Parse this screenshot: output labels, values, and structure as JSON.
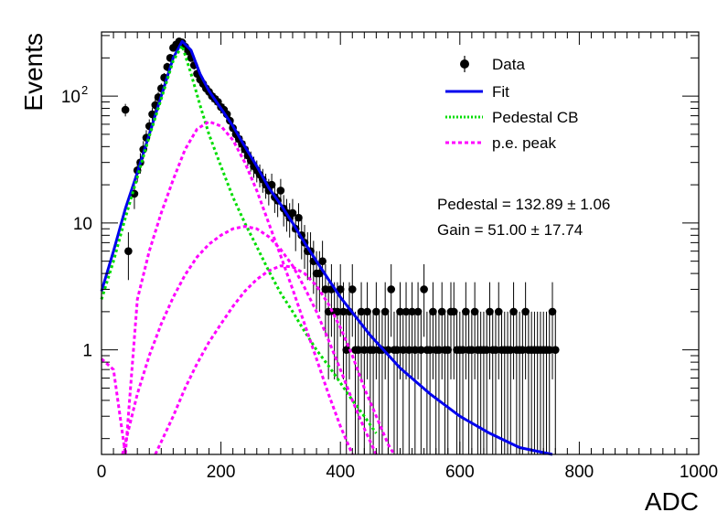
{
  "chart_data": {
    "type": "histogram_fit",
    "xlabel": "ADC",
    "ylabel": "Events",
    "xlim": [
      0,
      1000
    ],
    "ylim": [
      0.15,
      320
    ],
    "log_y": true,
    "grid": false,
    "x_ticks": [
      {
        "value": 0,
        "label": "0"
      },
      {
        "value": 200,
        "label": "200"
      },
      {
        "value": 400,
        "label": "400"
      },
      {
        "value": 600,
        "label": "600"
      },
      {
        "value": 800,
        "label": "800"
      },
      {
        "value": 1000,
        "label": "1000"
      }
    ],
    "y_ticks": [
      {
        "value": 1,
        "label": "1"
      },
      {
        "value": 10,
        "label": "10"
      },
      {
        "value": 100,
        "label": "10",
        "exponent": "2"
      }
    ],
    "legend": {
      "position": "top-right",
      "entries": [
        {
          "label": "Data",
          "style": "marker",
          "color": "#000000"
        },
        {
          "label": "Fit",
          "style": "solid",
          "color": "#0000ee"
        },
        {
          "label": "Pedestal CB",
          "style": "dotted",
          "color": "#00dd00"
        },
        {
          "label": "p.e. peak",
          "style": "dashed",
          "color": "#ff00ff"
        }
      ]
    },
    "annotations": [
      {
        "text": "Pedestal = 132.89 ± 1.06"
      },
      {
        "text": "Gain = 51.00 ± 17.74"
      }
    ],
    "fit_parameters": {
      "pedestal": 132.89,
      "gain": 51.0
    },
    "data_points": [
      [
        40,
        78
      ],
      [
        45,
        6
      ],
      [
        55,
        17
      ],
      [
        60,
        26
      ],
      [
        65,
        30
      ],
      [
        70,
        38
      ],
      [
        75,
        47
      ],
      [
        80,
        58
      ],
      [
        85,
        72
      ],
      [
        90,
        85
      ],
      [
        95,
        98
      ],
      [
        100,
        115
      ],
      [
        105,
        140
      ],
      [
        110,
        170
      ],
      [
        115,
        200
      ],
      [
        120,
        240
      ],
      [
        125,
        255
      ],
      [
        130,
        270
      ],
      [
        135,
        265
      ],
      [
        140,
        245
      ],
      [
        145,
        225
      ],
      [
        150,
        200
      ],
      [
        155,
        175
      ],
      [
        160,
        150
      ],
      [
        165,
        135
      ],
      [
        170,
        125
      ],
      [
        175,
        115
      ],
      [
        180,
        108
      ],
      [
        185,
        100
      ],
      [
        190,
        95
      ],
      [
        195,
        90
      ],
      [
        200,
        82
      ],
      [
        205,
        78
      ],
      [
        210,
        72
      ],
      [
        215,
        64
      ],
      [
        220,
        56
      ],
      [
        225,
        50
      ],
      [
        230,
        46
      ],
      [
        235,
        42
      ],
      [
        240,
        38
      ],
      [
        245,
        34
      ],
      [
        250,
        31
      ],
      [
        255,
        28
      ],
      [
        260,
        26
      ],
      [
        265,
        24
      ],
      [
        270,
        22
      ],
      [
        275,
        20
      ],
      [
        280,
        18
      ],
      [
        285,
        20
      ],
      [
        290,
        16
      ],
      [
        295,
        15
      ],
      [
        300,
        18
      ],
      [
        305,
        13
      ],
      [
        310,
        12
      ],
      [
        315,
        11
      ],
      [
        320,
        12
      ],
      [
        325,
        9
      ],
      [
        330,
        11
      ],
      [
        335,
        8
      ],
      [
        340,
        7
      ],
      [
        345,
        6
      ],
      [
        350,
        6
      ],
      [
        355,
        5
      ],
      [
        360,
        4
      ],
      [
        365,
        4
      ],
      [
        370,
        5
      ],
      [
        375,
        3
      ],
      [
        380,
        2
      ],
      [
        385,
        3
      ],
      [
        390,
        2
      ],
      [
        395,
        2
      ],
      [
        400,
        3
      ],
      [
        405,
        2
      ],
      [
        410,
        1
      ],
      [
        415,
        2
      ],
      [
        420,
        3
      ],
      [
        425,
        1
      ],
      [
        430,
        1
      ],
      [
        435,
        2
      ],
      [
        440,
        1
      ],
      [
        445,
        2
      ],
      [
        450,
        1
      ],
      [
        455,
        1
      ],
      [
        460,
        2
      ],
      [
        465,
        1
      ],
      [
        470,
        1
      ],
      [
        475,
        2
      ],
      [
        480,
        1
      ],
      [
        485,
        3
      ],
      [
        490,
        1
      ],
      [
        495,
        1
      ],
      [
        500,
        2
      ],
      [
        505,
        1
      ],
      [
        510,
        2
      ],
      [
        515,
        1
      ],
      [
        520,
        2
      ],
      [
        525,
        1
      ],
      [
        530,
        2
      ],
      [
        535,
        1
      ],
      [
        540,
        3
      ],
      [
        545,
        1
      ],
      [
        550,
        1
      ],
      [
        555,
        2
      ],
      [
        560,
        1
      ],
      [
        565,
        1
      ],
      [
        570,
        2
      ],
      [
        575,
        1
      ],
      [
        580,
        1
      ],
      [
        585,
        2
      ],
      [
        590,
        2
      ],
      [
        595,
        1
      ],
      [
        600,
        1
      ],
      [
        605,
        1
      ],
      [
        610,
        2
      ],
      [
        615,
        1
      ],
      [
        620,
        1
      ],
      [
        625,
        2
      ],
      [
        630,
        1
      ],
      [
        635,
        1
      ],
      [
        640,
        1
      ],
      [
        645,
        1
      ],
      [
        650,
        2
      ],
      [
        655,
        1
      ],
      [
        660,
        1
      ],
      [
        665,
        2
      ],
      [
        670,
        1
      ],
      [
        675,
        1
      ],
      [
        680,
        1
      ],
      [
        685,
        1
      ],
      [
        690,
        2
      ],
      [
        695,
        1
      ],
      [
        700,
        1
      ],
      [
        705,
        1
      ],
      [
        710,
        2
      ],
      [
        715,
        1
      ],
      [
        720,
        1
      ],
      [
        725,
        1
      ],
      [
        730,
        1
      ],
      [
        735,
        1
      ],
      [
        740,
        1
      ],
      [
        745,
        1
      ],
      [
        750,
        1
      ],
      [
        755,
        2
      ],
      [
        760,
        1
      ]
    ],
    "series": [
      {
        "name": "Fit",
        "color": "#0000ee",
        "points": [
          [
            0,
            2.9
          ],
          [
            20,
            6
          ],
          [
            40,
            13
          ],
          [
            60,
            25
          ],
          [
            80,
            50
          ],
          [
            100,
            100
          ],
          [
            120,
            200
          ],
          [
            135,
            270
          ],
          [
            150,
            230
          ],
          [
            165,
            150
          ],
          [
            180,
            110
          ],
          [
            200,
            80
          ],
          [
            220,
            58
          ],
          [
            240,
            40
          ],
          [
            260,
            28
          ],
          [
            280,
            19
          ],
          [
            300,
            14
          ],
          [
            320,
            10
          ],
          [
            340,
            7
          ],
          [
            360,
            5
          ],
          [
            380,
            3.6
          ],
          [
            400,
            2.6
          ],
          [
            450,
            1.3
          ],
          [
            500,
            0.72
          ],
          [
            550,
            0.45
          ],
          [
            600,
            0.3
          ],
          [
            650,
            0.22
          ],
          [
            700,
            0.17
          ],
          [
            755,
            0.15
          ]
        ]
      },
      {
        "name": "Pedestal CB",
        "color": "#00dd00",
        "points": [
          [
            0,
            2.5
          ],
          [
            20,
            5
          ],
          [
            40,
            11
          ],
          [
            60,
            23
          ],
          [
            80,
            48
          ],
          [
            100,
            95
          ],
          [
            120,
            190
          ],
          [
            135,
            250
          ],
          [
            150,
            150
          ],
          [
            165,
            85
          ],
          [
            180,
            50
          ],
          [
            200,
            28
          ],
          [
            220,
            16
          ],
          [
            240,
            10
          ],
          [
            260,
            6.5
          ],
          [
            280,
            4.2
          ],
          [
            300,
            2.8
          ],
          [
            320,
            2
          ],
          [
            340,
            1.4
          ],
          [
            360,
            1
          ],
          [
            380,
            0.75
          ],
          [
            400,
            0.55
          ],
          [
            420,
            0.4
          ],
          [
            440,
            0.3
          ],
          [
            460,
            0.22
          ]
        ]
      },
      {
        "name": "p.e. peak 1",
        "color": "#ff00ff",
        "points": [
          [
            0,
            0.85
          ],
          [
            20,
            0.7
          ],
          [
            40,
            0.15
          ],
          [
            60,
            2.5
          ],
          [
            80,
            6
          ],
          [
            100,
            12
          ],
          [
            120,
            22
          ],
          [
            140,
            38
          ],
          [
            160,
            55
          ],
          [
            180,
            63
          ],
          [
            200,
            58
          ],
          [
            220,
            45
          ],
          [
            240,
            30
          ],
          [
            260,
            18
          ],
          [
            280,
            10
          ],
          [
            300,
            5.5
          ],
          [
            320,
            3
          ],
          [
            340,
            1.6
          ],
          [
            360,
            0.85
          ],
          [
            380,
            0.45
          ],
          [
            400,
            0.25
          ],
          [
            420,
            0.15
          ]
        ]
      },
      {
        "name": "p.e. peak 2",
        "color": "#ff00ff",
        "points": [
          [
            35,
            0.15
          ],
          [
            60,
            0.45
          ],
          [
            80,
            0.9
          ],
          [
            100,
            1.6
          ],
          [
            120,
            2.6
          ],
          [
            140,
            3.9
          ],
          [
            160,
            5.4
          ],
          [
            180,
            6.8
          ],
          [
            200,
            8
          ],
          [
            220,
            9
          ],
          [
            240,
            9.4
          ],
          [
            260,
            9
          ],
          [
            280,
            7.8
          ],
          [
            300,
            6.2
          ],
          [
            320,
            4.6
          ],
          [
            340,
            3.1
          ],
          [
            360,
            2
          ],
          [
            380,
            1.2
          ],
          [
            400,
            0.7
          ],
          [
            420,
            0.4
          ],
          [
            440,
            0.24
          ],
          [
            460,
            0.15
          ]
        ]
      },
      {
        "name": "p.e. peak 3",
        "color": "#ff00ff",
        "points": [
          [
            90,
            0.15
          ],
          [
            120,
            0.3
          ],
          [
            140,
            0.5
          ],
          [
            160,
            0.78
          ],
          [
            180,
            1.15
          ],
          [
            200,
            1.6
          ],
          [
            220,
            2.2
          ],
          [
            240,
            2.9
          ],
          [
            260,
            3.6
          ],
          [
            280,
            4.2
          ],
          [
            300,
            4.6
          ],
          [
            320,
            4.5
          ],
          [
            340,
            4
          ],
          [
            360,
            3.2
          ],
          [
            380,
            2.3
          ],
          [
            400,
            1.5
          ],
          [
            420,
            0.9
          ],
          [
            440,
            0.5
          ],
          [
            460,
            0.3
          ],
          [
            480,
            0.18
          ],
          [
            490,
            0.15
          ]
        ]
      }
    ]
  }
}
